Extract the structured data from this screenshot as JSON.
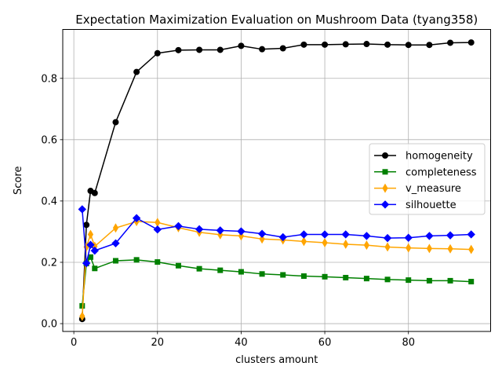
{
  "chart_data": {
    "type": "line",
    "title": "Expectation Maximization Evaluation on Mushroom Data (tyang358)",
    "xlabel": "clusters amount",
    "ylabel": "Score",
    "xlim": [
      -2.65,
      99.65
    ],
    "ylim": [
      -0.0255,
      0.9595
    ],
    "xticks": [
      0,
      20,
      40,
      60,
      80
    ],
    "yticks": [
      0.0,
      0.2,
      0.4,
      0.6,
      0.8
    ],
    "xtick_labels": [
      "0",
      "20",
      "40",
      "60",
      "80"
    ],
    "ytick_labels": [
      "0.0",
      "0.2",
      "0.4",
      "0.6",
      "0.8"
    ],
    "grid": true,
    "legend_position": "right",
    "x": [
      2,
      3,
      4,
      5,
      10,
      15,
      20,
      25,
      30,
      35,
      40,
      45,
      50,
      55,
      60,
      65,
      70,
      75,
      80,
      85,
      90,
      95
    ],
    "series": [
      {
        "name": "homogeneity",
        "color": "#000000",
        "marker": "circle",
        "values": [
          0.015,
          0.322,
          0.433,
          0.426,
          0.657,
          0.821,
          0.882,
          0.892,
          0.893,
          0.893,
          0.906,
          0.895,
          0.898,
          0.91,
          0.91,
          0.911,
          0.912,
          0.91,
          0.909,
          0.909,
          0.916,
          0.917
        ]
      },
      {
        "name": "completeness",
        "color": "#008000",
        "marker": "square",
        "values": [
          0.058,
          0.196,
          0.217,
          0.18,
          0.205,
          0.208,
          0.201,
          0.189,
          0.179,
          0.174,
          0.169,
          0.162,
          0.159,
          0.155,
          0.153,
          0.15,
          0.147,
          0.144,
          0.142,
          0.14,
          0.14,
          0.137
        ]
      },
      {
        "name": "v_measure",
        "color": "#ffa500",
        "marker": "thin_diamond",
        "values": [
          0.024,
          0.25,
          0.291,
          0.252,
          0.312,
          0.333,
          0.33,
          0.313,
          0.298,
          0.29,
          0.286,
          0.276,
          0.273,
          0.268,
          0.264,
          0.259,
          0.256,
          0.25,
          0.247,
          0.245,
          0.244,
          0.242
        ]
      },
      {
        "name": "silhouette",
        "color": "#0000ff",
        "marker": "diamond",
        "values": [
          0.373,
          0.197,
          0.257,
          0.238,
          0.262,
          0.344,
          0.307,
          0.318,
          0.308,
          0.304,
          0.301,
          0.293,
          0.282,
          0.291,
          0.291,
          0.291,
          0.286,
          0.279,
          0.28,
          0.286,
          0.288,
          0.291
        ]
      }
    ]
  }
}
